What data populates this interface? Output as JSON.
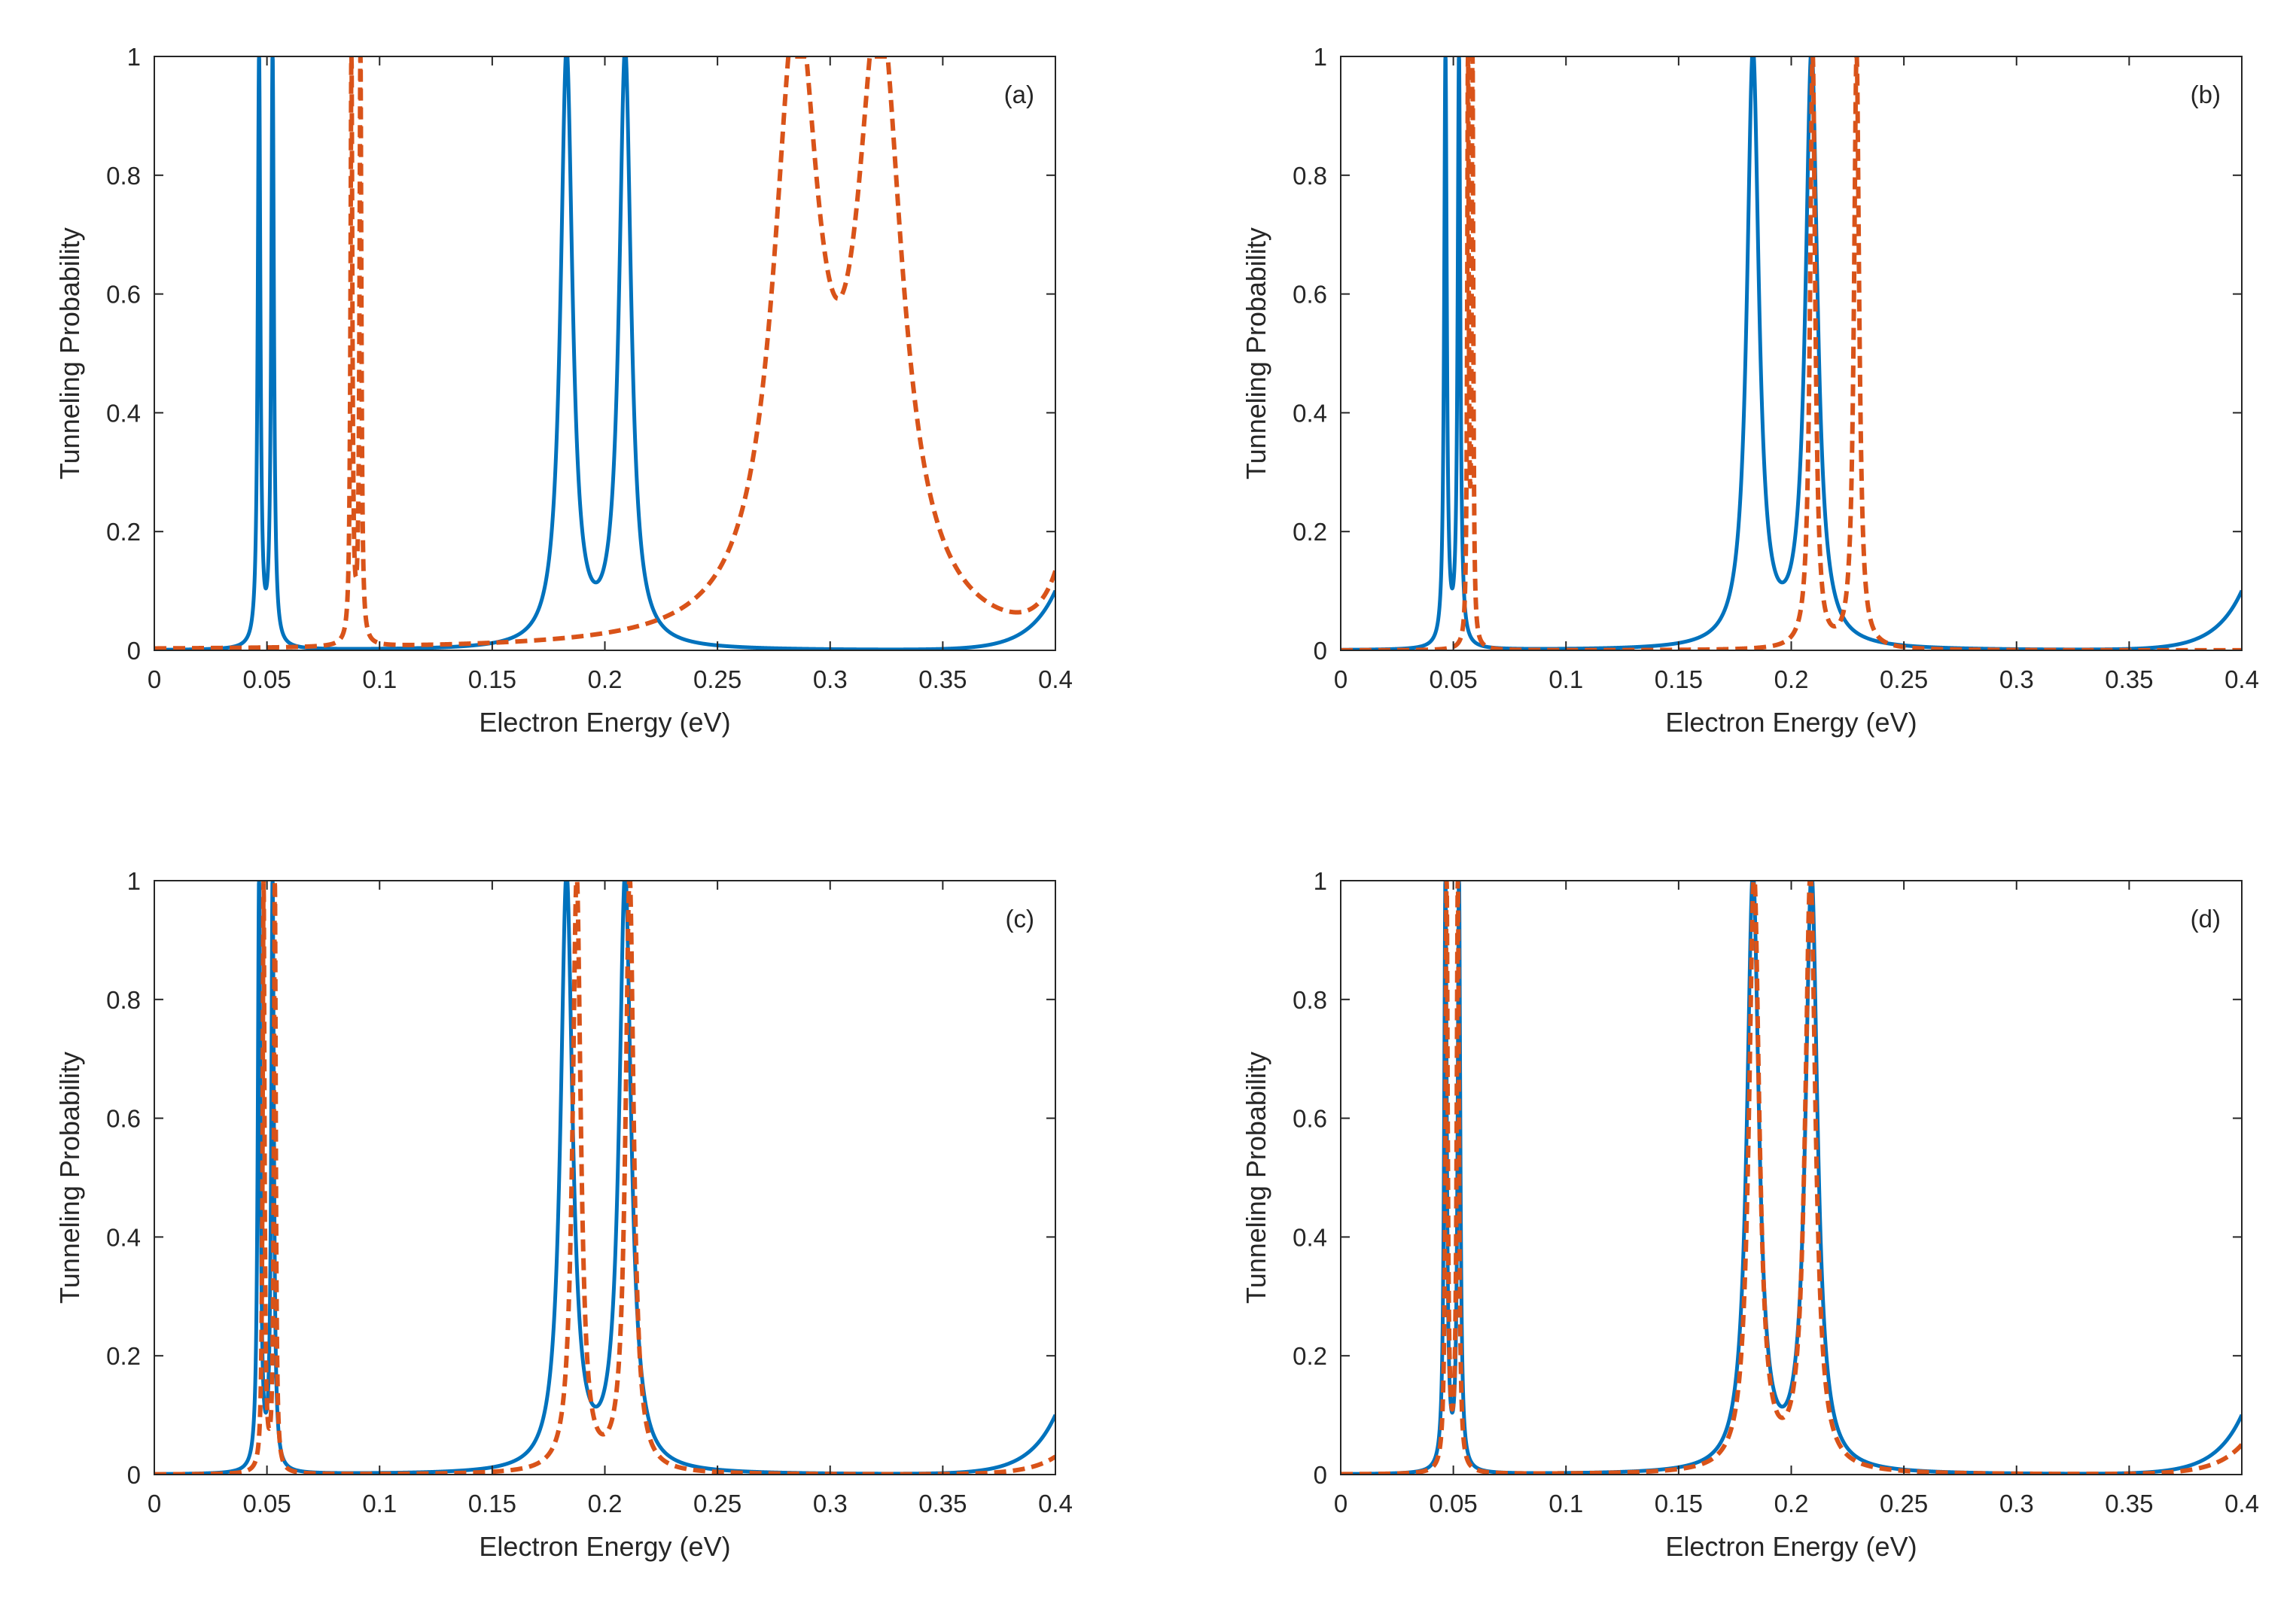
{
  "figure": {
    "colors": {
      "series_solid": "#0072BD",
      "series_dashed": "#D95319",
      "axis": "#262626",
      "background": "#ffffff"
    }
  },
  "chart_data": [
    {
      "type": "line",
      "panel_label": "(a)",
      "xlabel": "Electron Energy (eV)",
      "ylabel": "Tunneling Probability",
      "xlim": [
        0,
        0.4
      ],
      "ylim": [
        0,
        1
      ],
      "xticks": [
        "0",
        "0.05",
        "0.1",
        "0.15",
        "0.2",
        "0.25",
        "0.3",
        "0.35",
        "0.4"
      ],
      "yticks": [
        "0",
        "0.2",
        "0.4",
        "0.6",
        "0.8",
        "1"
      ],
      "grid": false,
      "series": [
        {
          "name": "solid",
          "style": "solid",
          "resonances": [
            {
              "e0": 0.0465,
              "gamma": 0.0007
            },
            {
              "e0": 0.0525,
              "gamma": 0.0007
            },
            {
              "e0": 0.183,
              "gamma": 0.0032
            },
            {
              "e0": 0.209,
              "gamma": 0.0032
            }
          ],
          "edge": {
            "value": 0.1,
            "width": 0.012
          }
        },
        {
          "name": "dashed",
          "style": "dashed",
          "resonances": [
            {
              "e0": 0.0875,
              "gamma": 0.0005
            },
            {
              "e0": 0.0915,
              "gamma": 0.0005
            },
            {
              "e0": 0.285,
              "gamma": 0.012
            },
            {
              "e0": 0.322,
              "gamma": 0.012
            }
          ],
          "edge": {
            "value": 0.1,
            "width": 0.008
          }
        }
      ]
    },
    {
      "type": "line",
      "panel_label": "(b)",
      "xlabel": "Electron Energy (eV)",
      "ylabel": "Tunneling Probability",
      "xlim": [
        0,
        0.4
      ],
      "ylim": [
        0,
        1
      ],
      "xticks": [
        "0",
        "0.05",
        "0.1",
        "0.15",
        "0.2",
        "0.25",
        "0.3",
        "0.35",
        "0.4"
      ],
      "yticks": [
        "0",
        "0.2",
        "0.4",
        "0.6",
        "0.8",
        "1"
      ],
      "grid": false,
      "series": [
        {
          "name": "solid",
          "style": "solid",
          "resonances": [
            {
              "e0": 0.0465,
              "gamma": 0.0007
            },
            {
              "e0": 0.0525,
              "gamma": 0.0007
            },
            {
              "e0": 0.183,
              "gamma": 0.0032
            },
            {
              "e0": 0.209,
              "gamma": 0.0032
            }
          ],
          "edge": {
            "value": 0.1,
            "width": 0.012
          }
        },
        {
          "name": "dashed",
          "style": "dashed",
          "resonances": [
            {
              "e0": 0.0565,
              "gamma": 0.0004
            },
            {
              "e0": 0.0585,
              "gamma": 0.0004
            },
            {
              "e0": 0.2095,
              "gamma": 0.0014
            },
            {
              "e0": 0.229,
              "gamma": 0.0014
            }
          ],
          "edge": {
            "value": 0.0,
            "width": 0.01
          }
        }
      ]
    },
    {
      "type": "line",
      "panel_label": "(c)",
      "xlabel": "Electron Energy (eV)",
      "ylabel": "Tunneling Probability",
      "xlim": [
        0,
        0.4
      ],
      "ylim": [
        0,
        1
      ],
      "xticks": [
        "0",
        "0.05",
        "0.1",
        "0.15",
        "0.2",
        "0.25",
        "0.3",
        "0.35",
        "0.4"
      ],
      "yticks": [
        "0",
        "0.2",
        "0.4",
        "0.6",
        "0.8",
        "1"
      ],
      "grid": false,
      "series": [
        {
          "name": "solid",
          "style": "solid",
          "resonances": [
            {
              "e0": 0.0465,
              "gamma": 0.0007
            },
            {
              "e0": 0.0525,
              "gamma": 0.0007
            },
            {
              "e0": 0.183,
              "gamma": 0.0032
            },
            {
              "e0": 0.209,
              "gamma": 0.0032
            }
          ],
          "edge": {
            "value": 0.1,
            "width": 0.012
          }
        },
        {
          "name": "dashed",
          "style": "dashed",
          "resonances": [
            {
              "e0": 0.0485,
              "gamma": 0.0005
            },
            {
              "e0": 0.0535,
              "gamma": 0.0005
            },
            {
              "e0": 0.1875,
              "gamma": 0.0022
            },
            {
              "e0": 0.211,
              "gamma": 0.0022
            }
          ],
          "edge": {
            "value": 0.03,
            "width": 0.012
          }
        }
      ]
    },
    {
      "type": "line",
      "panel_label": "(d)",
      "xlabel": "Electron Energy (eV)",
      "ylabel": "Tunneling Probability",
      "xlim": [
        0,
        0.4
      ],
      "ylim": [
        0,
        1
      ],
      "xticks": [
        "0",
        "0.05",
        "0.1",
        "0.15",
        "0.2",
        "0.25",
        "0.3",
        "0.35",
        "0.4"
      ],
      "yticks": [
        "0",
        "0.2",
        "0.4",
        "0.6",
        "0.8",
        "1"
      ],
      "grid": false,
      "series": [
        {
          "name": "solid",
          "style": "solid",
          "resonances": [
            {
              "e0": 0.0465,
              "gamma": 0.0007
            },
            {
              "e0": 0.0525,
              "gamma": 0.0007
            },
            {
              "e0": 0.183,
              "gamma": 0.0032
            },
            {
              "e0": 0.209,
              "gamma": 0.0032
            }
          ],
          "edge": {
            "value": 0.1,
            "width": 0.012
          }
        },
        {
          "name": "dashed",
          "style": "dashed",
          "resonances": [
            {
              "e0": 0.047,
              "gamma": 0.0006
            },
            {
              "e0": 0.052,
              "gamma": 0.0006
            },
            {
              "e0": 0.1835,
              "gamma": 0.0028
            },
            {
              "e0": 0.2085,
              "gamma": 0.0028
            }
          ],
          "edge": {
            "value": 0.05,
            "width": 0.012
          }
        }
      ]
    }
  ]
}
